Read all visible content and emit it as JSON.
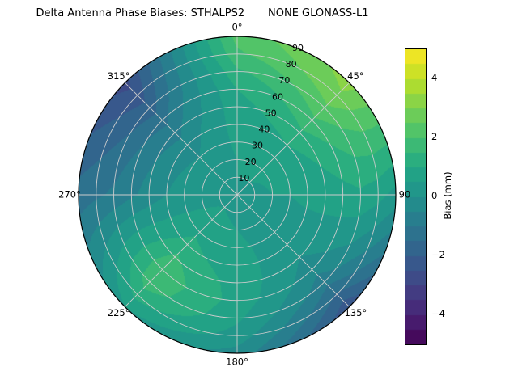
{
  "title": "Delta Antenna Phase Biases: STHALPS2       NONE GLONASS-L1",
  "chart_data": {
    "type": "heatmap",
    "subtype": "polar_filled_contour_skyplot",
    "title": "Delta Antenna Phase Biases: STHALPS2       NONE GLONASS-L1",
    "angular_axis": {
      "direction": "clockwise",
      "zero_location": "top",
      "labels": [
        {
          "angle_deg": 0,
          "label": "0°"
        },
        {
          "angle_deg": 45,
          "label": "45°"
        },
        {
          "angle_deg": 90,
          "label": "90"
        },
        {
          "angle_deg": 135,
          "label": "135°"
        },
        {
          "angle_deg": 180,
          "label": "180°"
        },
        {
          "angle_deg": 225,
          "label": "225°"
        },
        {
          "angle_deg": 270,
          "label": "270°"
        },
        {
          "angle_deg": 315,
          "label": "315°"
        }
      ]
    },
    "radial_axis": {
      "ticks": [
        10,
        20,
        30,
        40,
        50,
        60,
        70,
        80,
        90
      ],
      "max_zenith_deg": 90,
      "label_angle_deg": 22.5
    },
    "grid_on": true,
    "azimuth_deg": [
      0,
      45,
      90,
      135,
      180,
      225,
      270,
      315
    ],
    "zenith_deg": [
      0,
      10,
      20,
      30,
      40,
      50,
      60,
      70,
      80,
      90
    ],
    "bias_mm": [
      [
        0.4,
        0.5,
        0.5,
        0.6,
        0.7,
        0.8,
        1.0,
        1.4,
        1.9,
        2.2
      ],
      [
        0.4,
        0.5,
        0.6,
        0.8,
        1.0,
        1.4,
        1.9,
        2.4,
        2.9,
        3.2
      ],
      [
        0.4,
        0.4,
        0.5,
        0.5,
        0.6,
        0.7,
        0.8,
        0.9,
        0.7,
        0.3
      ],
      [
        0.4,
        0.4,
        0.3,
        0.3,
        0.2,
        0.0,
        -0.3,
        -0.8,
        -1.6,
        -2.4
      ],
      [
        0.4,
        0.4,
        0.5,
        0.6,
        0.7,
        0.8,
        0.8,
        0.6,
        0.3,
        -0.2
      ],
      [
        0.4,
        0.5,
        0.7,
        0.9,
        1.2,
        1.6,
        1.9,
        1.8,
        1.2,
        0.5
      ],
      [
        0.4,
        0.4,
        0.3,
        0.2,
        0.0,
        -0.3,
        -0.6,
        -0.9,
        -1.1,
        -1.3
      ],
      [
        0.4,
        0.3,
        0.2,
        0.0,
        -0.3,
        -0.7,
        -1.2,
        -1.8,
        -2.3,
        -2.7
      ]
    ],
    "vmin": -5,
    "vmax": 5,
    "level_step": 0.5,
    "colorbar": {
      "label": "Bias (mm)",
      "ticks": [
        4,
        2,
        0,
        -2,
        -4
      ],
      "position": "right"
    },
    "colormap_name": "viridis",
    "colormap": [
      {
        "t": 0.0,
        "c": "#440154"
      },
      {
        "t": 0.1,
        "c": "#482475"
      },
      {
        "t": 0.2,
        "c": "#414487"
      },
      {
        "t": 0.3,
        "c": "#355f8d"
      },
      {
        "t": 0.4,
        "c": "#2a788e"
      },
      {
        "t": 0.5,
        "c": "#21918c"
      },
      {
        "t": 0.6,
        "c": "#22a884"
      },
      {
        "t": 0.7,
        "c": "#44bf70"
      },
      {
        "t": 0.8,
        "c": "#7ad151"
      },
      {
        "t": 0.9,
        "c": "#bddf26"
      },
      {
        "t": 1.0,
        "c": "#fde725"
      }
    ]
  }
}
